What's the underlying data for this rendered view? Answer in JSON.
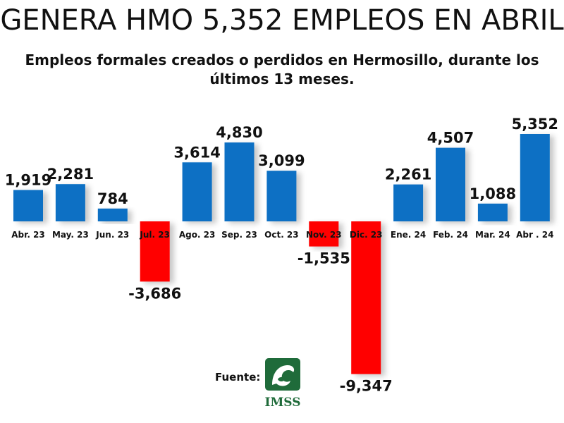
{
  "title": "GENERA HMO 5,352 EMPLEOS EN ABRIL",
  "subtitle": "Empleos formales creados o perdidos en Hermosillo, durante los últimos 13 meses.",
  "source_label": "Fuente:",
  "logo_text": "IMSS",
  "colors": {
    "positive": "#0b6fc4",
    "negative": "#ff0000",
    "logo": "#1f6b3a"
  },
  "chart_data": {
    "type": "bar",
    "title": "GENERA HMO 5,352 EMPLEOS EN ABRIL",
    "subtitle": "Empleos formales creados o perdidos en Hermosillo, durante los últimos 13 meses.",
    "xlabel": "",
    "ylabel": "",
    "categories": [
      "Abr. 23",
      "May. 23",
      "Jun. 23",
      "Jul. 23",
      "Ago. 23",
      "Sep. 23",
      "Oct. 23",
      "Nov. 23",
      "Dic. 23",
      "Ene. 24",
      "Feb. 24",
      "Mar. 24",
      "Abr . 24"
    ],
    "values": [
      1919,
      2281,
      784,
      -3686,
      3614,
      4830,
      3099,
      -1535,
      -9347,
      2261,
      4507,
      1088,
      5352
    ],
    "value_labels": [
      "1,919",
      "2,281",
      "784",
      "-3,686",
      "3,614",
      "4,830",
      "3,099",
      "-1,535",
      "-9,347",
      "2,261",
      "4,507",
      "1,088",
      "5,352"
    ],
    "grid": false,
    "legend": "none"
  }
}
